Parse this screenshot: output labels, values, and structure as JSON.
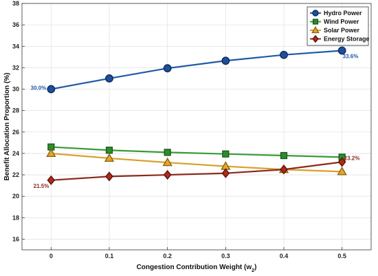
{
  "chart_data": {
    "type": "line",
    "xlabel_main": "Congestion Contribution Weight (w",
    "xlabel_sub": "2",
    "xlabel_end": ")",
    "ylabel": "Benefit Allocation Proportion (%)",
    "x": [
      0,
      0.1,
      0.2,
      0.3,
      0.4,
      0.5
    ],
    "x_tick_labels": [
      "0",
      "0.1",
      "0.2",
      "0.3",
      "0.4",
      "0.5"
    ],
    "xlim": [
      -0.05,
      0.55
    ],
    "ylim": [
      15,
      38
    ],
    "y_ticks": [
      16,
      18,
      20,
      22,
      24,
      26,
      28,
      30,
      32,
      34,
      36,
      38
    ],
    "y_tick_labels": [
      "16",
      "18",
      "20",
      "22",
      "24",
      "26",
      "28",
      "30",
      "32",
      "34",
      "36",
      "38"
    ],
    "grid": true,
    "legend_position": "top-right",
    "series": [
      {
        "name": "Hydro Power",
        "marker": "circle",
        "line_color": "#1f5aa6",
        "marker_fill": "#1f4e9c",
        "marker_stroke": "#0d2a5c",
        "values": [
          30.0,
          31.0,
          31.95,
          32.65,
          33.2,
          33.6
        ]
      },
      {
        "name": "Wind Power",
        "marker": "square",
        "line_color": "#3a9a3a",
        "marker_fill": "#2e8b2e",
        "marker_stroke": "#1a5c1a",
        "values": [
          24.6,
          24.3,
          24.1,
          23.95,
          23.8,
          23.65
        ]
      },
      {
        "name": "Solar Power",
        "marker": "triangle",
        "line_color": "#d9a02a",
        "marker_fill": "#e0a82e",
        "marker_stroke": "#8a6410",
        "values": [
          24.0,
          23.55,
          23.15,
          22.8,
          22.5,
          22.3
        ]
      },
      {
        "name": "Energy Storage",
        "marker": "diamond",
        "line_color": "#8b2a1e",
        "marker_fill": "#b02a1a",
        "marker_stroke": "#5c1208",
        "values": [
          21.5,
          21.85,
          22.0,
          22.15,
          22.5,
          23.2
        ]
      }
    ],
    "annotations": [
      {
        "text": "30.0%",
        "x": 0,
        "y": 30.0,
        "color": "#1f5aa6",
        "anchor": "left"
      },
      {
        "text": "33.6%",
        "x": 0.5,
        "y": 33.6,
        "color": "#1f5aa6",
        "anchor": "below-right"
      },
      {
        "text": "21.5%",
        "x": 0,
        "y": 21.5,
        "color": "#8b2a1e",
        "anchor": "below-left"
      },
      {
        "text": "23.2%",
        "x": 0.5,
        "y": 23.2,
        "color": "#8b2a1e",
        "anchor": "above-right"
      }
    ]
  }
}
